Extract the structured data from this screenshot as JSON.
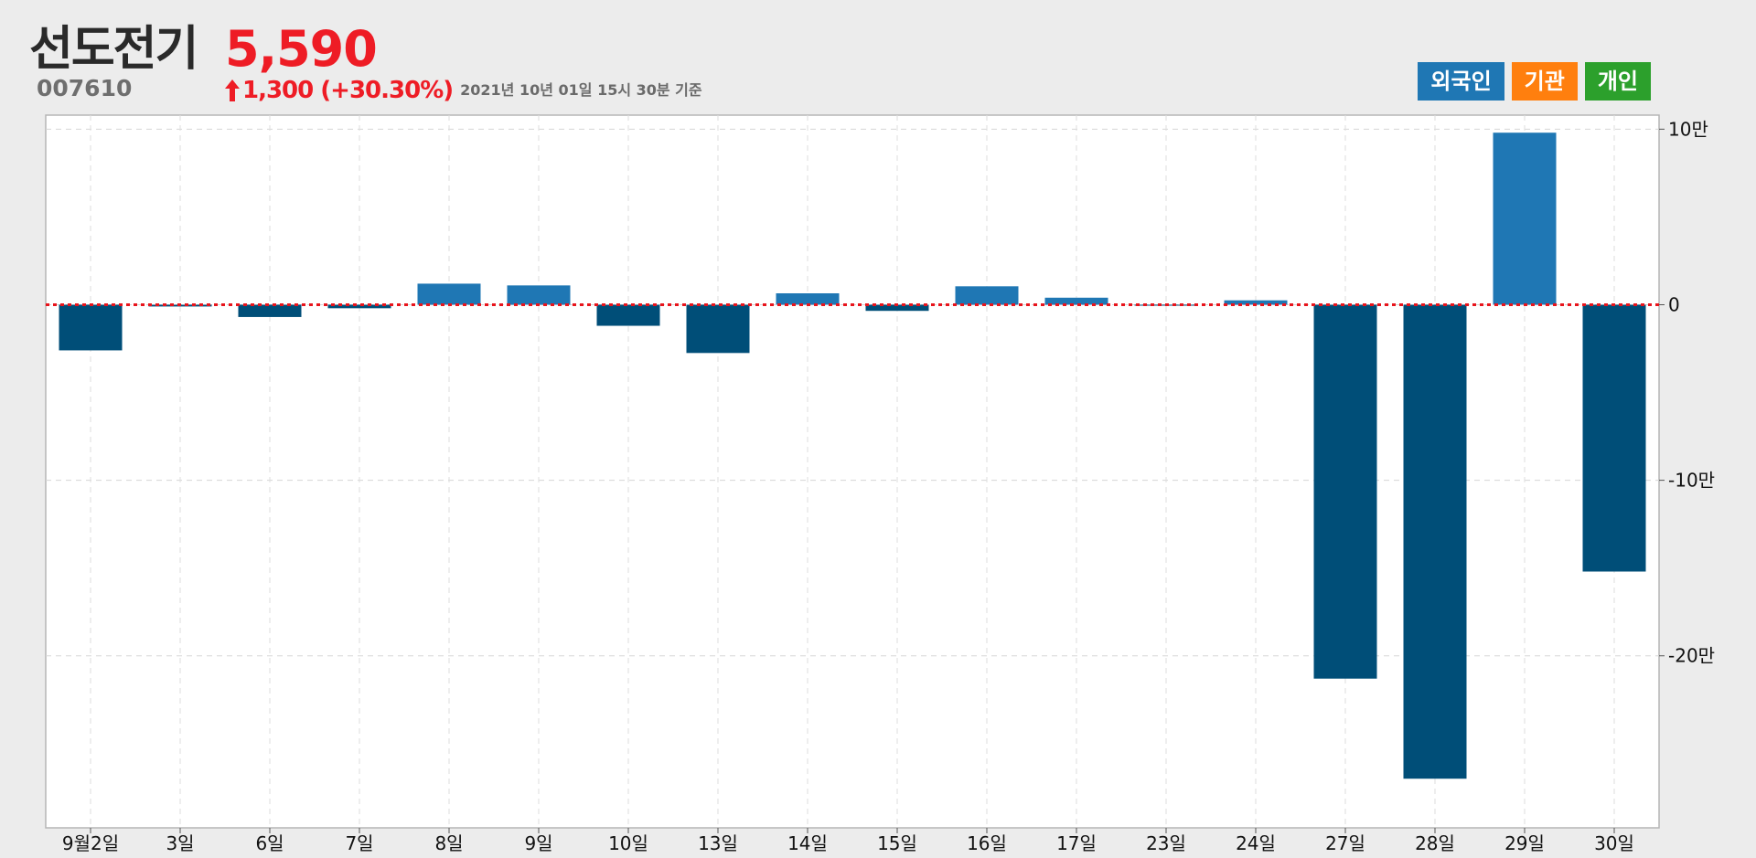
{
  "header": {
    "name": "선도전기",
    "price": "5,590",
    "code": "007610",
    "change": "1,300 (+30.30%)",
    "date": "2021년 10년 01일 15시 30분 기준",
    "price_color": "#ee1c25"
  },
  "legend": [
    {
      "label": "외국인",
      "color": "#1f77b4"
    },
    {
      "label": "기관",
      "color": "#ff7f0e"
    },
    {
      "label": "개인",
      "color": "#2ca02c"
    }
  ],
  "chart_data": {
    "type": "bar",
    "categories": [
      "9월2일",
      "3일",
      "6일",
      "7일",
      "8일",
      "9일",
      "10일",
      "13일",
      "14일",
      "15일",
      "16일",
      "17일",
      "23일",
      "24일",
      "27일",
      "28일",
      "29일",
      "30일"
    ],
    "series": [
      {
        "values": [
          -26000,
          -1000,
          -7000,
          -2000,
          12000,
          11000,
          -12000,
          -27500,
          6500,
          -3500,
          10500,
          4000,
          -500,
          2500,
          -213000,
          -270000,
          98000,
          -152000
        ]
      }
    ],
    "y_ticks": [
      {
        "value": 100000,
        "label": "10만"
      },
      {
        "value": 0,
        "label": "0"
      },
      {
        "value": -100000,
        "label": "-10만"
      },
      {
        "value": -200000,
        "label": "-20만"
      }
    ],
    "ylim": [
      -298000,
      108000
    ],
    "positive_color": "#1f77b4",
    "negative_color": "#004e78",
    "zero_line_color": "#e8141c",
    "grid": true,
    "legend_position": "top-right"
  }
}
